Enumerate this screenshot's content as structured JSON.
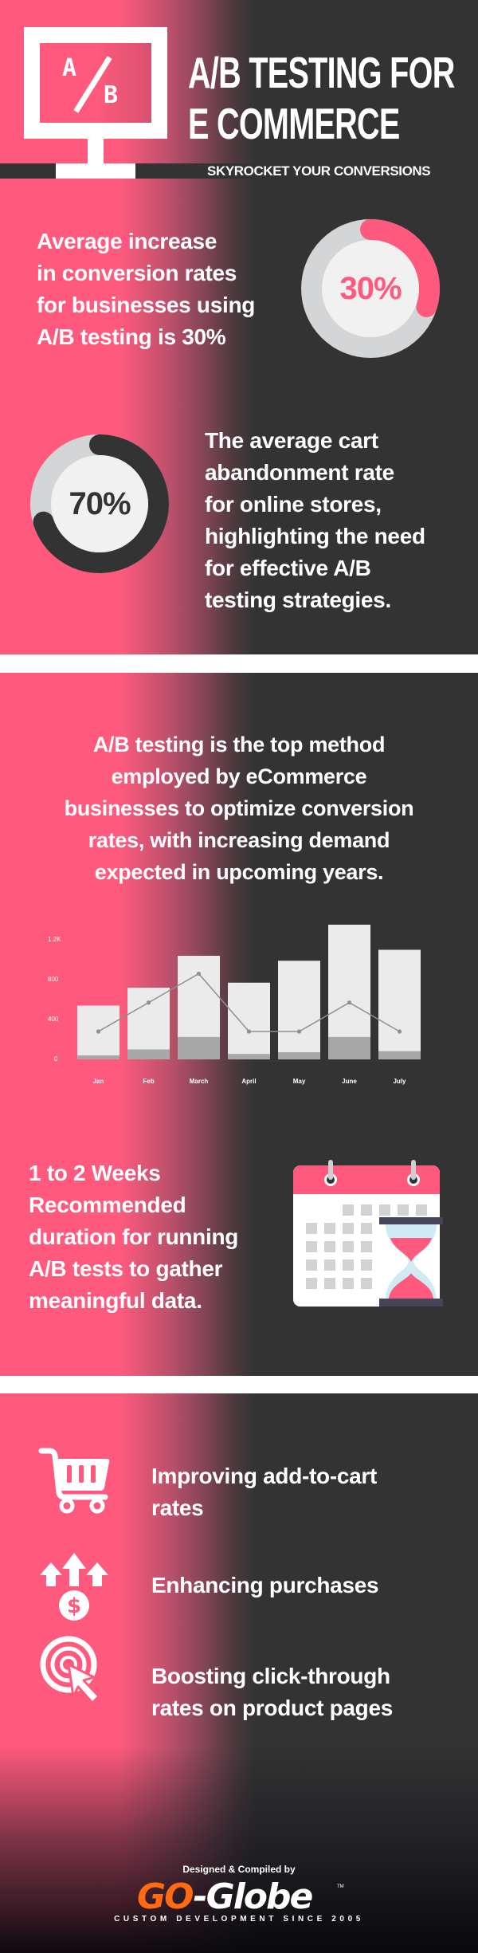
{
  "colors": {
    "pink": "#ff5a7d",
    "dark": "#333333",
    "ring_track": "#d4d5d7",
    "ring_center": "#f1f1f1",
    "bar": "#ebebeb",
    "bar_base": "#a8a8a8",
    "line": "#8f8f8f",
    "brand_orange": "#ff6a13"
  },
  "header": {
    "icon": "ab-monitor-icon",
    "icon_letter_a": "A",
    "icon_letter_b": "B",
    "title_line1": "A/B TESTING FOR",
    "title_line2": "E COMMERCE",
    "subtitle": "SKYROCKET YOUR CONVERSIONS"
  },
  "stat1": {
    "lines": [
      "Average increase",
      "in conversion rates",
      "for businesses using",
      "A/B testing is 30%"
    ],
    "value_label": "30%",
    "percent": 30,
    "ring_color": "#ff5a7d"
  },
  "stat2": {
    "lines": [
      "The average cart",
      "abandonment rate",
      "for online stores,",
      "highlighting the need",
      "for effective A/B",
      "testing strategies."
    ],
    "value_label": "70%",
    "percent": 70,
    "ring_color": "#333333"
  },
  "method": {
    "lines": [
      "A/B testing is the top method",
      "employed by eCommerce",
      "businesses to optimize conversion",
      "rates, with increasing demand",
      "expected in upcoming years."
    ]
  },
  "chart_data": {
    "type": "bar",
    "title": "",
    "xlabel": "",
    "ylabel": "",
    "categories": [
      "Jan",
      "Feb",
      "March",
      "April",
      "May",
      "June",
      "July"
    ],
    "y_ticks": [
      "0",
      "400",
      "800",
      "1.2K"
    ],
    "ylim": [
      0,
      1500
    ],
    "grid": false,
    "legend": "none",
    "series": [
      {
        "name": "total",
        "kind": "bar",
        "values": [
          540,
          720,
          1040,
          770,
          990,
          1450,
          1100
        ]
      },
      {
        "name": "base",
        "kind": "bar",
        "values": [
          40,
          100,
          225,
          55,
          72,
          225,
          83
        ]
      },
      {
        "name": "trend",
        "kind": "line",
        "values": [
          280,
          570,
          860,
          280,
          280,
          570,
          280
        ]
      }
    ]
  },
  "duration": {
    "lines": [
      "1 to 2 Weeks",
      "Recommended",
      "duration for running",
      "A/B tests to gather",
      "meaningful data."
    ],
    "icon": "calendar-hourglass-icon"
  },
  "benefits": [
    {
      "icon": "shopping-cart-icon",
      "lines": [
        "Improving add-to-cart",
        "rates"
      ]
    },
    {
      "icon": "arrows-up-dollar-icon",
      "lines": [
        "Enhancing purchases"
      ]
    },
    {
      "icon": "target-click-icon",
      "lines": [
        "Boosting click-through",
        "rates on product pages"
      ]
    }
  ],
  "footer": {
    "credit": "Designed & Compiled by",
    "brand_go": "GO",
    "brand_rest": "-Globe",
    "trademark": "TM",
    "tagline": "CUSTOM DEVELOPMENT SINCE 2005"
  }
}
